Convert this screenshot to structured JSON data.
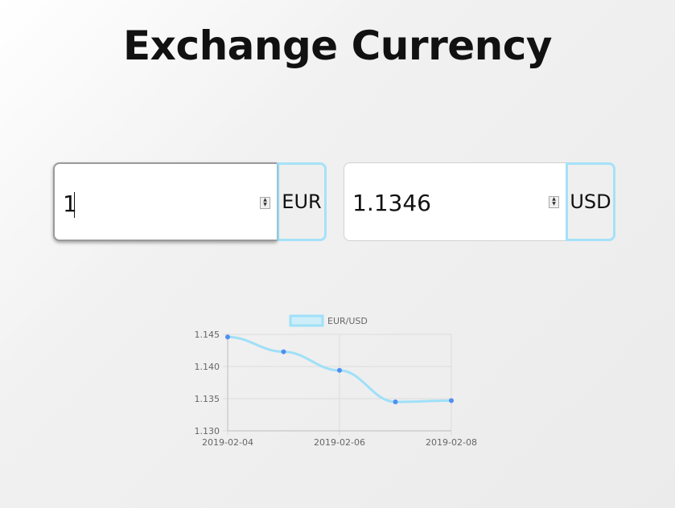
{
  "page": {
    "title": "Exchange Currency"
  },
  "from": {
    "amount": "1",
    "currency": "EUR"
  },
  "to": {
    "amount": "1.1346",
    "currency": "USD"
  },
  "colors": {
    "accent": "#a5e2f8",
    "line": "#9fe0f8",
    "point": "#4f8ff0",
    "grid": "#dcdcdc"
  },
  "chart_data": {
    "type": "line",
    "title": "",
    "legend": "EUR/USD",
    "legend_position": "top",
    "x": [
      "2019-02-04",
      "2019-02-05",
      "2019-02-06",
      "2019-02-07",
      "2019-02-08"
    ],
    "x_tick_labels": [
      "2019-02-04",
      "2019-02-06",
      "2019-02-08"
    ],
    "y_tick_labels": [
      "1.145",
      "1.140",
      "1.135",
      "1.130"
    ],
    "series": [
      {
        "name": "EUR/USD",
        "values": [
          1.1446,
          1.1423,
          1.1394,
          1.1345,
          1.1347
        ]
      }
    ],
    "ylim": [
      1.13,
      1.145
    ],
    "grid": true,
    "xlabel": "",
    "ylabel": ""
  }
}
